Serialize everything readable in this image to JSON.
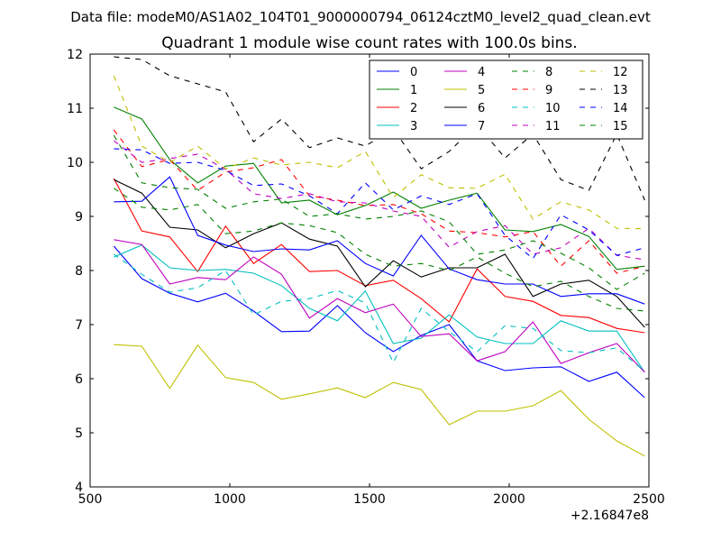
{
  "chart_data": {
    "type": "line",
    "suptitle": "Data file: modeM0/AS1A02_104T01_9000000794_06124cztM0_level2_quad_clean.evt",
    "title": "Quadrant 1 module wise count rates with 100.0s bins.",
    "xlabel": "",
    "ylabel": "",
    "xlim": [
      500,
      2500
    ],
    "ylim": [
      4,
      12
    ],
    "x_ticks": [
      500,
      1000,
      1500,
      2000,
      2500
    ],
    "y_ticks": [
      4,
      5,
      6,
      7,
      8,
      9,
      10,
      11,
      12
    ],
    "x_offset_label": "+2.16847e8",
    "grid": false,
    "legend_position": "top-right",
    "x": [
      585,
      685,
      785,
      885,
      985,
      1085,
      1185,
      1285,
      1385,
      1485,
      1585,
      1685,
      1785,
      1885,
      1985,
      2085,
      2185,
      2285,
      2385,
      2485
    ],
    "series": [
      {
        "name": "0",
        "color": "#0000ff",
        "style": "solid",
        "values": [
          8.45,
          7.85,
          7.58,
          7.42,
          7.58,
          7.25,
          6.87,
          6.88,
          7.35,
          6.85,
          6.5,
          6.8,
          7.0,
          6.33,
          6.15,
          6.2,
          6.22,
          5.95,
          6.12,
          5.65
        ]
      },
      {
        "name": "1",
        "color": "#008000",
        "style": "solid",
        "values": [
          11.02,
          10.8,
          10.05,
          9.62,
          9.93,
          9.98,
          9.25,
          9.3,
          9.03,
          9.2,
          9.45,
          9.15,
          9.3,
          9.43,
          8.75,
          8.72,
          8.85,
          8.63,
          8.02,
          8.08
        ]
      },
      {
        "name": "2",
        "color": "#ff0000",
        "style": "solid",
        "values": [
          9.7,
          8.73,
          8.62,
          7.98,
          8.82,
          8.13,
          8.48,
          7.98,
          8.0,
          7.72,
          7.82,
          7.48,
          7.05,
          8.03,
          7.52,
          7.43,
          7.17,
          7.13,
          6.93,
          6.85
        ]
      },
      {
        "name": "3",
        "color": "#00bfbf",
        "style": "solid",
        "values": [
          8.25,
          8.47,
          8.05,
          8.0,
          8.02,
          7.95,
          7.72,
          7.3,
          7.07,
          7.62,
          6.65,
          6.75,
          7.18,
          6.77,
          6.65,
          6.65,
          7.07,
          6.88,
          6.88,
          6.12
        ]
      },
      {
        "name": "4",
        "color": "#bf00bf",
        "style": "solid",
        "values": [
          8.57,
          8.48,
          7.75,
          7.87,
          7.83,
          8.25,
          7.93,
          7.12,
          7.48,
          7.22,
          7.38,
          6.78,
          6.83,
          6.33,
          6.5,
          7.05,
          6.28,
          6.48,
          6.65,
          6.12
        ]
      },
      {
        "name": "5",
        "color": "#bfbf00",
        "style": "solid",
        "values": [
          6.63,
          6.6,
          5.82,
          6.62,
          6.02,
          5.93,
          5.62,
          5.72,
          5.83,
          5.65,
          5.93,
          5.8,
          5.15,
          5.4,
          5.4,
          5.5,
          5.78,
          5.25,
          4.85,
          4.57
        ]
      },
      {
        "name": "6",
        "color": "#000000",
        "style": "solid",
        "values": [
          9.68,
          9.43,
          8.8,
          8.75,
          8.42,
          8.68,
          8.88,
          8.58,
          8.45,
          7.7,
          8.18,
          7.88,
          8.05,
          8.05,
          8.3,
          7.52,
          7.75,
          7.82,
          7.52,
          6.95
        ]
      },
      {
        "name": "7",
        "color": "#0000ff",
        "style": "solid",
        "values": [
          9.27,
          9.28,
          9.73,
          8.65,
          8.47,
          8.35,
          8.4,
          8.38,
          8.55,
          8.13,
          7.9,
          8.65,
          8.03,
          7.83,
          7.75,
          7.75,
          7.52,
          7.57,
          7.57,
          7.38
        ]
      },
      {
        "name": "8",
        "color": "#008000",
        "style": "dashed",
        "values": [
          9.52,
          9.17,
          9.12,
          9.22,
          8.68,
          8.73,
          8.88,
          8.83,
          8.7,
          8.3,
          8.08,
          8.13,
          8.0,
          8.25,
          7.95,
          7.7,
          7.8,
          7.52,
          7.3,
          7.25
        ]
      },
      {
        "name": "9",
        "color": "#ff0000",
        "style": "dashed",
        "values": [
          10.6,
          9.92,
          10.05,
          9.48,
          9.82,
          9.9,
          10.05,
          9.38,
          9.3,
          9.2,
          9.22,
          9.05,
          8.73,
          8.7,
          8.62,
          8.72,
          8.08,
          8.55,
          7.95,
          8.08
        ]
      },
      {
        "name": "10",
        "color": "#00bfbf",
        "style": "dashed",
        "values": [
          8.3,
          7.93,
          7.6,
          7.68,
          8.0,
          7.18,
          7.43,
          7.48,
          7.63,
          7.4,
          6.3,
          7.3,
          6.87,
          6.5,
          6.98,
          6.93,
          6.52,
          6.48,
          6.57,
          6.13
        ]
      },
      {
        "name": "11",
        "color": "#bf00bf",
        "style": "dashed",
        "values": [
          10.4,
          10.0,
          10.07,
          10.15,
          9.87,
          9.42,
          9.33,
          9.42,
          9.27,
          9.25,
          9.1,
          9.0,
          8.43,
          8.72,
          8.83,
          8.3,
          8.42,
          8.78,
          8.28,
          8.2
        ]
      },
      {
        "name": "12",
        "color": "#bfbf00",
        "style": "dashed",
        "values": [
          11.6,
          10.3,
          10.0,
          10.3,
          9.88,
          10.08,
          9.95,
          10.0,
          9.9,
          10.2,
          9.35,
          9.77,
          9.53,
          9.52,
          9.78,
          8.95,
          9.27,
          9.12,
          8.78,
          8.77
        ]
      },
      {
        "name": "13",
        "color": "#000000",
        "style": "dashed",
        "values": [
          11.95,
          11.9,
          11.6,
          11.45,
          11.3,
          10.38,
          10.8,
          10.27,
          10.45,
          10.3,
          10.62,
          9.88,
          10.2,
          10.7,
          10.08,
          10.52,
          9.68,
          9.48,
          10.52,
          9.3
        ]
      },
      {
        "name": "14",
        "color": "#0000ff",
        "style": "dashed",
        "values": [
          10.25,
          10.23,
          9.98,
          10.0,
          9.85,
          9.57,
          9.6,
          9.38,
          9.05,
          9.62,
          9.12,
          9.38,
          9.22,
          9.42,
          8.65,
          8.22,
          9.03,
          8.75,
          8.28,
          8.42
        ]
      },
      {
        "name": "15",
        "color": "#008000",
        "style": "dashed",
        "values": [
          10.5,
          9.62,
          9.53,
          9.5,
          9.15,
          9.27,
          9.32,
          9.0,
          9.05,
          8.95,
          9.0,
          9.1,
          8.9,
          8.3,
          8.38,
          8.55,
          8.32,
          8.05,
          7.65,
          7.95
        ]
      }
    ]
  }
}
